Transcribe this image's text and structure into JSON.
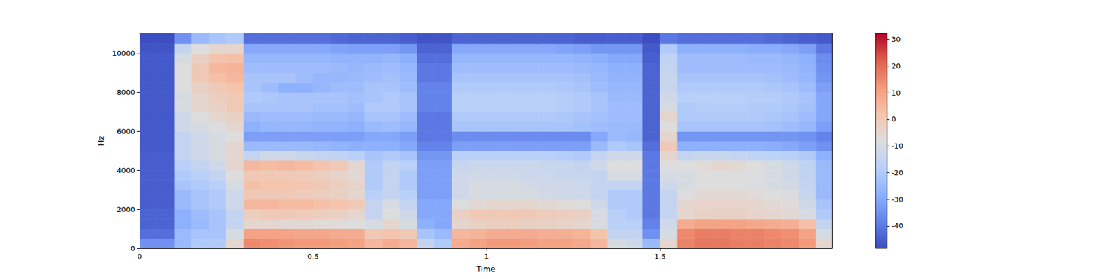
{
  "chart_data": {
    "type": "heatmap",
    "xlabel": "Time",
    "ylabel": "Hz",
    "xlim": [
      0,
      1.996
    ],
    "xticks": [
      0,
      0.5,
      1,
      1.5
    ],
    "ylim": [
      0,
      11025
    ],
    "yticks": [
      0,
      2000,
      4000,
      6000,
      8000,
      10000
    ],
    "x_edges": [
      0,
      0.05,
      0.1,
      0.15,
      0.2,
      0.25,
      0.3,
      0.35,
      0.4,
      0.45,
      0.5,
      0.55,
      0.6,
      0.65,
      0.7,
      0.75,
      0.8,
      0.85,
      0.9,
      0.95,
      1.0,
      1.05,
      1.1,
      1.15,
      1.2,
      1.25,
      1.3,
      1.35,
      1.4,
      1.45,
      1.5,
      1.55,
      1.6,
      1.65,
      1.7,
      1.75,
      1.8,
      1.85,
      1.9,
      1.95,
      1.996
    ],
    "y_edges": [
      0,
      500,
      1000,
      1500,
      2000,
      2500,
      3000,
      3500,
      4000,
      4500,
      5000,
      5500,
      6000,
      6500,
      7000,
      7500,
      8000,
      8500,
      9000,
      9500,
      10000,
      10500,
      11025
    ],
    "cells": [
      [
        -35,
        -35,
        -25,
        -20,
        -20,
        -5,
        15,
        14,
        13,
        12,
        12,
        11,
        10,
        5,
        8,
        5,
        -15,
        -20,
        8,
        10,
        12,
        12,
        11,
        10,
        10,
        9,
        5,
        -10,
        -12,
        -25,
        -5,
        16,
        18,
        18,
        17,
        17,
        16,
        15,
        12,
        -5
      ],
      [
        -42,
        -42,
        -25,
        -22,
        -22,
        -10,
        10,
        10,
        10,
        9,
        9,
        8,
        8,
        0,
        2,
        0,
        -22,
        -25,
        5,
        6,
        8,
        8,
        8,
        7,
        7,
        6,
        2,
        -15,
        -15,
        -35,
        -10,
        15,
        17,
        17,
        16,
        16,
        15,
        14,
        10,
        -10
      ],
      [
        -44,
        -44,
        -28,
        -25,
        -22,
        -15,
        -5,
        -5,
        -6,
        -6,
        -7,
        -7,
        -8,
        -10,
        -5,
        -10,
        -28,
        -30,
        -5,
        -3,
        -2,
        -2,
        -3,
        -3,
        -4,
        -5,
        -10,
        -18,
        -18,
        -38,
        -12,
        8,
        10,
        10,
        10,
        9,
        8,
        7,
        3,
        -15
      ],
      [
        -44,
        -44,
        -28,
        -24,
        -22,
        -15,
        -2,
        0,
        0,
        -1,
        -2,
        -3,
        -5,
        -15,
        -8,
        -12,
        -30,
        -30,
        -3,
        0,
        0,
        0,
        0,
        -1,
        -2,
        -3,
        -10,
        -18,
        -20,
        -40,
        -15,
        -5,
        -3,
        -3,
        -3,
        -4,
        -5,
        -6,
        -10,
        -20
      ],
      [
        -45,
        -45,
        -25,
        -22,
        -20,
        -12,
        5,
        5,
        4,
        4,
        3,
        2,
        0,
        -15,
        -10,
        -15,
        -30,
        -30,
        -8,
        -6,
        -5,
        -5,
        -5,
        -6,
        -7,
        -8,
        -12,
        -20,
        -20,
        -40,
        -15,
        -5,
        -4,
        -4,
        -4,
        -5,
        -6,
        -7,
        -12,
        -22
      ],
      [
        -45,
        -45,
        -25,
        -22,
        -20,
        -12,
        0,
        0,
        0,
        -1,
        -2,
        -3,
        -5,
        -18,
        -15,
        -18,
        -32,
        -32,
        -12,
        -10,
        -10,
        -10,
        -10,
        -11,
        -12,
        -12,
        -15,
        -20,
        -20,
        -40,
        -15,
        -8,
        -6,
        -6,
        -6,
        -7,
        -8,
        -9,
        -14,
        -25
      ],
      [
        -45,
        -45,
        -22,
        -20,
        -18,
        -10,
        3,
        2,
        2,
        1,
        0,
        -2,
        -4,
        -20,
        -15,
        -20,
        -32,
        -32,
        -12,
        -10,
        -10,
        -10,
        -11,
        -12,
        -12,
        -13,
        -15,
        -15,
        -15,
        -40,
        -12,
        -10,
        -8,
        -8,
        -8,
        -9,
        -10,
        -11,
        -15,
        -25
      ],
      [
        -45,
        -45,
        -20,
        -18,
        -15,
        -8,
        0,
        0,
        0,
        -1,
        -2,
        -4,
        -6,
        -20,
        -15,
        -20,
        -32,
        -32,
        -12,
        -12,
        -12,
        -12,
        -13,
        -13,
        -14,
        -14,
        -15,
        -10,
        -10,
        -40,
        -10,
        -10,
        -8,
        -8,
        -8,
        -9,
        -10,
        -12,
        -16,
        -25
      ],
      [
        -45,
        -45,
        -18,
        -15,
        -12,
        -5,
        5,
        4,
        5,
        4,
        2,
        0,
        -5,
        -20,
        -15,
        -18,
        -32,
        -32,
        -14,
        -13,
        -13,
        -13,
        -13,
        -14,
        -14,
        -15,
        -12,
        -8,
        -8,
        -40,
        -8,
        -8,
        -7,
        -5,
        -6,
        -8,
        -10,
        -12,
        -16,
        -25
      ],
      [
        -45,
        -45,
        -15,
        -12,
        -10,
        -5,
        -15,
        -12,
        -12,
        -14,
        -15,
        -16,
        -18,
        -22,
        -20,
        -22,
        -34,
        -34,
        -18,
        -18,
        -18,
        -18,
        -18,
        -18,
        -19,
        -20,
        -15,
        -12,
        -12,
        -40,
        -5,
        -15,
        -14,
        -14,
        -15,
        -16,
        -17,
        -18,
        -20,
        -28
      ],
      [
        -46,
        -46,
        -15,
        -12,
        -10,
        -5,
        -25,
        -25,
        -25,
        -25,
        -26,
        -27,
        -28,
        -28,
        -28,
        -30,
        -38,
        -38,
        -32,
        -32,
        -32,
        -32,
        -32,
        -32,
        -32,
        -32,
        -25,
        -20,
        -22,
        -42,
        0,
        -28,
        -28,
        -28,
        -28,
        -28,
        -29,
        -30,
        -32,
        -35
      ],
      [
        -46,
        -46,
        -15,
        -12,
        -10,
        -8,
        -32,
        -32,
        -32,
        -32,
        -32,
        -32,
        -32,
        -30,
        -30,
        -32,
        -40,
        -40,
        -36,
        -36,
        -36,
        -36,
        -36,
        -36,
        -36,
        -36,
        -30,
        -25,
        -26,
        -44,
        -5,
        -34,
        -34,
        -34,
        -34,
        -34,
        -34,
        -34,
        -35,
        -38
      ],
      [
        -46,
        -46,
        -12,
        -10,
        -8,
        -5,
        -28,
        -26,
        -26,
        -26,
        -27,
        -27,
        -28,
        -25,
        -24,
        -26,
        -40,
        -40,
        -22,
        -22,
        -22,
        -22,
        -22,
        -22,
        -22,
        -23,
        -24,
        -25,
        -25,
        -44,
        -8,
        -22,
        -22,
        -22,
        -22,
        -22,
        -23,
        -24,
        -26,
        -32
      ],
      [
        -46,
        -46,
        -12,
        -8,
        -5,
        -3,
        -25,
        -24,
        -24,
        -24,
        -25,
        -25,
        -26,
        -22,
        -22,
        -24,
        -40,
        -40,
        -20,
        -20,
        -20,
        -20,
        -20,
        -20,
        -21,
        -22,
        -23,
        -24,
        -24,
        -44,
        -5,
        -20,
        -20,
        -20,
        -20,
        -20,
        -21,
        -22,
        -24,
        -30
      ],
      [
        -46,
        -46,
        -10,
        -5,
        -3,
        0,
        -22,
        -22,
        -22,
        -22,
        -23,
        -23,
        -24,
        -20,
        -20,
        -22,
        -38,
        -38,
        -18,
        -18,
        -18,
        -18,
        -18,
        -18,
        -19,
        -20,
        -22,
        -24,
        -24,
        -44,
        -10,
        -20,
        -19,
        -19,
        -19,
        -20,
        -20,
        -21,
        -23,
        -30
      ],
      [
        -46,
        -46,
        -10,
        -5,
        -2,
        0,
        -20,
        -21,
        -22,
        -22,
        -22,
        -22,
        -23,
        -22,
        -20,
        -22,
        -38,
        -38,
        -18,
        -18,
        -18,
        -18,
        -18,
        -18,
        -19,
        -20,
        -22,
        -25,
        -25,
        -44,
        -12,
        -18,
        -18,
        -18,
        -18,
        -19,
        -19,
        -20,
        -22,
        -30
      ],
      [
        -46,
        -46,
        -8,
        -3,
        0,
        2,
        -22,
        -24,
        -28,
        -28,
        -26,
        -24,
        -24,
        -22,
        -22,
        -24,
        -38,
        -38,
        -20,
        -20,
        -20,
        -20,
        -20,
        -20,
        -21,
        -22,
        -24,
        -26,
        -26,
        -44,
        -14,
        -20,
        -20,
        -20,
        -20,
        -20,
        -21,
        -22,
        -24,
        -32
      ],
      [
        -46,
        -46,
        -8,
        0,
        3,
        5,
        -22,
        -22,
        -22,
        -24,
        -26,
        -26,
        -25,
        -24,
        -23,
        -25,
        -40,
        -40,
        -22,
        -22,
        -22,
        -22,
        -22,
        -22,
        -22,
        -23,
        -25,
        -27,
        -27,
        -44,
        -14,
        -22,
        -22,
        -22,
        -22,
        -22,
        -23,
        -24,
        -26,
        -34
      ],
      [
        -46,
        -46,
        -8,
        0,
        5,
        6,
        -24,
        -24,
        -24,
        -24,
        -24,
        -25,
        -26,
        -25,
        -24,
        -26,
        -40,
        -40,
        -24,
        -24,
        -24,
        -24,
        -24,
        -24,
        -24,
        -25,
        -26,
        -28,
        -28,
        -44,
        -15,
        -24,
        -24,
        -24,
        -24,
        -24,
        -24,
        -25,
        -27,
        -35
      ],
      [
        -46,
        -46,
        -10,
        -3,
        2,
        3,
        -26,
        -26,
        -26,
        -26,
        -26,
        -27,
        -27,
        -27,
        -26,
        -28,
        -42,
        -42,
        -26,
        -26,
        -26,
        -26,
        -26,
        -26,
        -26,
        -27,
        -28,
        -30,
        -30,
        -45,
        -16,
        -24,
        -24,
        -24,
        -24,
        -25,
        -25,
        -26,
        -28,
        -36
      ],
      [
        -47,
        -47,
        -15,
        -8,
        -5,
        -5,
        -30,
        -30,
        -30,
        -30,
        -30,
        -31,
        -32,
        -32,
        -32,
        -34,
        -44,
        -44,
        -30,
        -30,
        -30,
        -30,
        -30,
        -30,
        -31,
        -32,
        -34,
        -34,
        -34,
        -46,
        -20,
        -28,
        -28,
        -28,
        -28,
        -29,
        -29,
        -30,
        -32,
        -40
      ],
      [
        -48,
        -48,
        -35,
        -25,
        -22,
        -20,
        -42,
        -42,
        -42,
        -42,
        -42,
        -43,
        -44,
        -44,
        -44,
        -45,
        -47,
        -47,
        -44,
        -44,
        -44,
        -44,
        -44,
        -44,
        -44,
        -45,
        -45,
        -45,
        -45,
        -48,
        -40,
        -42,
        -42,
        -42,
        -42,
        -42,
        -43,
        -44,
        -45,
        -46
      ]
    ],
    "colorbar_range": [
      -48.4,
      32.2
    ],
    "colorbar_ticks": [
      -40,
      -30,
      -20,
      -10,
      0,
      10,
      20,
      30
    ]
  }
}
